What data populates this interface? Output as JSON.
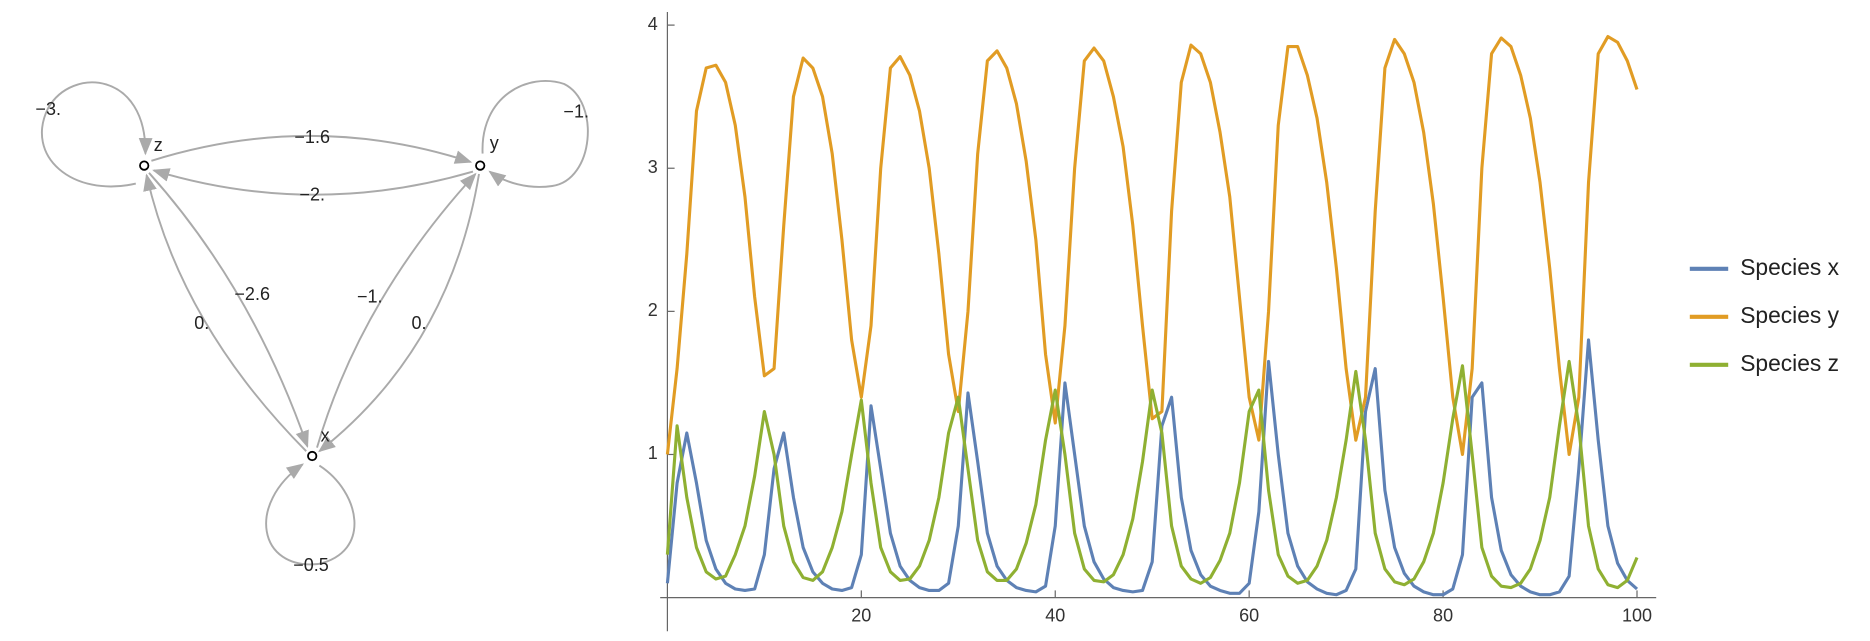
{
  "graph": {
    "nodes": [
      {
        "label": "x"
      },
      {
        "label": "y"
      },
      {
        "label": "z"
      }
    ],
    "edges": [
      {
        "label": "−3."
      },
      {
        "label": "−1."
      },
      {
        "label": "−0.5"
      },
      {
        "label": "−1.6"
      },
      {
        "label": "−2."
      },
      {
        "label": "−2.6"
      },
      {
        "label": "0."
      },
      {
        "label": "−1."
      },
      {
        "label": "0."
      }
    ]
  },
  "chart_data": {
    "type": "line",
    "xlim": [
      0,
      100
    ],
    "ylim": [
      0,
      4.1
    ],
    "xticks": [
      20,
      40,
      60,
      80,
      100
    ],
    "yticks": [
      1,
      2,
      3,
      4
    ],
    "legend": "right",
    "x": [
      0,
      1,
      2,
      3,
      4,
      5,
      6,
      7,
      8,
      9,
      10,
      11,
      12,
      13,
      14,
      15,
      16,
      17,
      18,
      19,
      20,
      21,
      22,
      23,
      24,
      25,
      26,
      27,
      28,
      29,
      30,
      31,
      32,
      33,
      34,
      35,
      36,
      37,
      38,
      39,
      40,
      41,
      42,
      43,
      44,
      45,
      46,
      47,
      48,
      49,
      50,
      51,
      52,
      53,
      54,
      55,
      56,
      57,
      58,
      59,
      60,
      61,
      62,
      63,
      64,
      65,
      66,
      67,
      68,
      69,
      70,
      71,
      72,
      73,
      74,
      75,
      76,
      77,
      78,
      79,
      80,
      81,
      82,
      83,
      84,
      85,
      86,
      87,
      88,
      89,
      90,
      91,
      92,
      93,
      94,
      95,
      96,
      97,
      98,
      99,
      100
    ],
    "series": [
      {
        "name": "Species x",
        "color": "#5e81b5",
        "values": [
          0.1,
          0.8,
          1.15,
          0.8,
          0.4,
          0.2,
          0.1,
          0.06,
          0.05,
          0.06,
          0.3,
          0.9,
          1.15,
          0.7,
          0.35,
          0.18,
          0.1,
          0.06,
          0.05,
          0.07,
          0.3,
          1.34,
          0.9,
          0.45,
          0.22,
          0.12,
          0.07,
          0.05,
          0.05,
          0.1,
          0.5,
          1.43,
          0.95,
          0.45,
          0.22,
          0.12,
          0.07,
          0.05,
          0.04,
          0.08,
          0.5,
          1.5,
          1.0,
          0.5,
          0.25,
          0.13,
          0.07,
          0.05,
          0.04,
          0.05,
          0.25,
          1.2,
          1.4,
          0.7,
          0.33,
          0.16,
          0.08,
          0.05,
          0.03,
          0.03,
          0.1,
          0.6,
          1.65,
          1.0,
          0.45,
          0.22,
          0.11,
          0.06,
          0.03,
          0.02,
          0.05,
          0.2,
          1.3,
          1.6,
          0.75,
          0.35,
          0.17,
          0.08,
          0.04,
          0.02,
          0.02,
          0.06,
          0.3,
          1.4,
          1.5,
          0.7,
          0.33,
          0.16,
          0.08,
          0.04,
          0.02,
          0.02,
          0.04,
          0.15,
          0.9,
          1.8,
          1.1,
          0.5,
          0.24,
          0.12,
          0.06
        ]
      },
      {
        "name": "Species y",
        "color": "#e19c24",
        "values": [
          1.0,
          1.6,
          2.4,
          3.4,
          3.7,
          3.72,
          3.6,
          3.3,
          2.8,
          2.1,
          1.55,
          1.6,
          2.6,
          3.5,
          3.77,
          3.7,
          3.5,
          3.1,
          2.5,
          1.8,
          1.4,
          1.9,
          3.0,
          3.7,
          3.78,
          3.65,
          3.4,
          3.0,
          2.4,
          1.7,
          1.3,
          2.0,
          3.1,
          3.75,
          3.82,
          3.7,
          3.45,
          3.05,
          2.5,
          1.7,
          1.22,
          1.9,
          3.0,
          3.75,
          3.84,
          3.75,
          3.5,
          3.15,
          2.6,
          1.9,
          1.25,
          1.3,
          2.7,
          3.6,
          3.86,
          3.8,
          3.6,
          3.25,
          2.8,
          2.1,
          1.4,
          1.1,
          2.0,
          3.3,
          3.85,
          3.85,
          3.65,
          3.35,
          2.9,
          2.3,
          1.6,
          1.1,
          1.4,
          2.7,
          3.7,
          3.9,
          3.8,
          3.6,
          3.25,
          2.75,
          2.1,
          1.4,
          1.0,
          1.6,
          3.0,
          3.8,
          3.91,
          3.85,
          3.65,
          3.35,
          2.9,
          2.3,
          1.6,
          1.0,
          1.4,
          2.9,
          3.8,
          3.92,
          3.88,
          3.75,
          3.55
        ]
      },
      {
        "name": "Species z",
        "color": "#8fb032",
        "values": [
          0.3,
          1.2,
          0.7,
          0.35,
          0.18,
          0.13,
          0.15,
          0.3,
          0.5,
          0.85,
          1.3,
          1.0,
          0.5,
          0.25,
          0.14,
          0.12,
          0.18,
          0.35,
          0.6,
          1.0,
          1.38,
          0.8,
          0.35,
          0.18,
          0.12,
          0.13,
          0.22,
          0.4,
          0.7,
          1.15,
          1.4,
          0.9,
          0.4,
          0.18,
          0.12,
          0.12,
          0.2,
          0.38,
          0.65,
          1.1,
          1.45,
          1.0,
          0.45,
          0.2,
          0.12,
          0.11,
          0.16,
          0.3,
          0.55,
          0.95,
          1.45,
          1.15,
          0.5,
          0.22,
          0.13,
          0.1,
          0.14,
          0.26,
          0.45,
          0.8,
          1.3,
          1.45,
          0.75,
          0.3,
          0.15,
          0.1,
          0.12,
          0.22,
          0.4,
          0.7,
          1.1,
          1.58,
          1.1,
          0.45,
          0.2,
          0.11,
          0.09,
          0.13,
          0.25,
          0.45,
          0.8,
          1.25,
          1.62,
          1.0,
          0.35,
          0.15,
          0.08,
          0.07,
          0.1,
          0.2,
          0.4,
          0.7,
          1.2,
          1.65,
          1.2,
          0.5,
          0.2,
          0.09,
          0.07,
          0.12,
          0.28
        ]
      }
    ]
  }
}
